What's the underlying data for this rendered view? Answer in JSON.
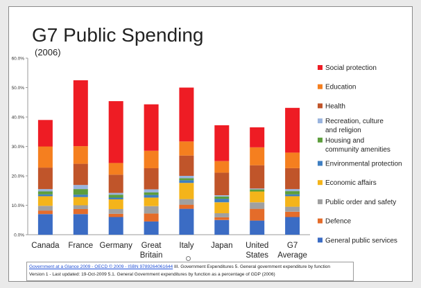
{
  "chart_data": {
    "type": "bar",
    "stacked": true,
    "title": "G7 Public Spending",
    "subtitle": "(2006)",
    "categories": [
      "Canada",
      "France",
      "Germany",
      "Great Britain",
      "Italy",
      "Japan",
      "United States",
      "G7 Average"
    ],
    "ylim": [
      0,
      60
    ],
    "yticks": [
      "0.0%",
      "10.0%",
      "20.0%",
      "30.0%",
      "40.0%",
      "50.0%",
      "60.0%"
    ],
    "grid": false,
    "legend_position": "right",
    "series": [
      {
        "name": "General public services",
        "color": "#3b6cc4",
        "values": [
          7.0,
          7.0,
          6.0,
          4.5,
          8.8,
          5.0,
          4.8,
          6.0
        ]
      },
      {
        "name": "Defence",
        "color": "#e46c2a",
        "values": [
          1.2,
          1.7,
          1.1,
          2.7,
          1.4,
          0.9,
          4.0,
          1.8
        ]
      },
      {
        "name": "Public order and safety",
        "color": "#a0a0a0",
        "values": [
          1.6,
          1.3,
          1.6,
          2.5,
          1.9,
          1.4,
          2.2,
          1.7
        ]
      },
      {
        "name": "Economic affairs",
        "color": "#f4b41a",
        "values": [
          3.3,
          2.8,
          3.3,
          2.9,
          5.5,
          3.7,
          3.7,
          3.6
        ]
      },
      {
        "name": "Environmental protection",
        "color": "#3f7fc2",
        "values": [
          0.6,
          0.8,
          0.6,
          0.9,
          0.9,
          1.2,
          0.0,
          0.6
        ]
      },
      {
        "name": "Housing and community amenities",
        "color": "#5d9e3d",
        "values": [
          1.0,
          1.9,
          1.0,
          0.9,
          0.7,
          0.8,
          0.7,
          1.1
        ]
      },
      {
        "name": "Recreation, culture and religion",
        "color": "#9ab4de",
        "values": [
          0.8,
          1.4,
          0.6,
          1.0,
          0.8,
          0.4,
          0.3,
          0.7
        ]
      },
      {
        "name": "Health",
        "color": "#c0552a",
        "values": [
          7.3,
          7.2,
          6.2,
          7.2,
          6.9,
          7.7,
          7.9,
          7.1
        ]
      },
      {
        "name": "Education",
        "color": "#f57f1f",
        "values": [
          7.2,
          6.0,
          4.0,
          5.9,
          4.8,
          3.9,
          6.1,
          5.3
        ]
      },
      {
        "name": "Social protection",
        "color": "#ee1c24",
        "values": [
          9.0,
          22.4,
          21.0,
          15.8,
          18.3,
          12.2,
          6.8,
          15.2
        ]
      }
    ]
  },
  "caption": {
    "link_text": "Government at a Glance 2009 - OECD © 2009 - ISBN 9789264061644",
    "line1_rest": " III. Government Expenditures 5. General government expenditure by function",
    "line2": "Version 1 - Last updated: 19-Oct-2009 5.1. General Government expenditures by function as a percentage of GDP (2006)"
  }
}
